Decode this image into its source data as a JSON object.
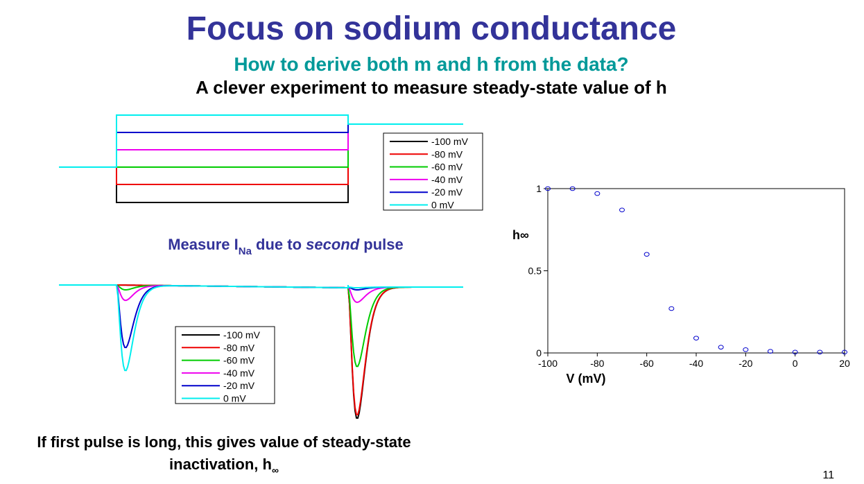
{
  "title": "Focus on sodium conductance",
  "subtitle": "How to derive both m and h from the data?",
  "heading": "A clever experiment to measure steady-state value of h",
  "measure_caption": {
    "prefix": "Measure I",
    "subscript": "Na",
    "middle": " due to ",
    "emphasis": "second",
    "suffix": " pulse"
  },
  "footnote": {
    "line1": "If first pulse is long, this gives value of steady-state",
    "line2": "inactivation, h",
    "subscript": "∞"
  },
  "page_number": "11",
  "voltage_panel": {
    "legend": [
      {
        "label": "-100 mV",
        "color": "#000000"
      },
      {
        "label": "-80 mV",
        "color": "#ee0000"
      },
      {
        "label": "-60 mV",
        "color": "#00cc00"
      },
      {
        "label": "-40 mV",
        "color": "#ee00ee"
      },
      {
        "label": "-20 mV",
        "color": "#0000cc"
      },
      {
        "label": "0 mV",
        "color": "#00eeee"
      }
    ]
  },
  "current_panel": {
    "legend": [
      {
        "label": "-100 mV",
        "color": "#000000"
      },
      {
        "label": "-80 mV",
        "color": "#ee0000"
      },
      {
        "label": "-60 mV",
        "color": "#00cc00"
      },
      {
        "label": "-40 mV",
        "color": "#ee00ee"
      },
      {
        "label": "-20 mV",
        "color": "#0000cc"
      },
      {
        "label": "0 mV",
        "color": "#00eeee"
      }
    ]
  },
  "chart_data": {
    "type": "scatter",
    "x_label": "V (mV)",
    "y_label": "h∞",
    "x": [
      -100,
      -90,
      -80,
      -70,
      -60,
      -50,
      -40,
      -30,
      -20,
      -10,
      0,
      10,
      20
    ],
    "values": [
      1.0,
      1.0,
      0.97,
      0.87,
      0.6,
      0.27,
      0.09,
      0.035,
      0.02,
      0.01,
      0.005,
      0.005,
      0.005
    ],
    "color": "#0000cc",
    "xlim": [
      -100,
      20
    ],
    "ylim": [
      0,
      1
    ],
    "xticks": [
      -100,
      -80,
      -60,
      -40,
      -20,
      0,
      20
    ],
    "yticks": [
      0,
      0.5,
      1
    ]
  }
}
